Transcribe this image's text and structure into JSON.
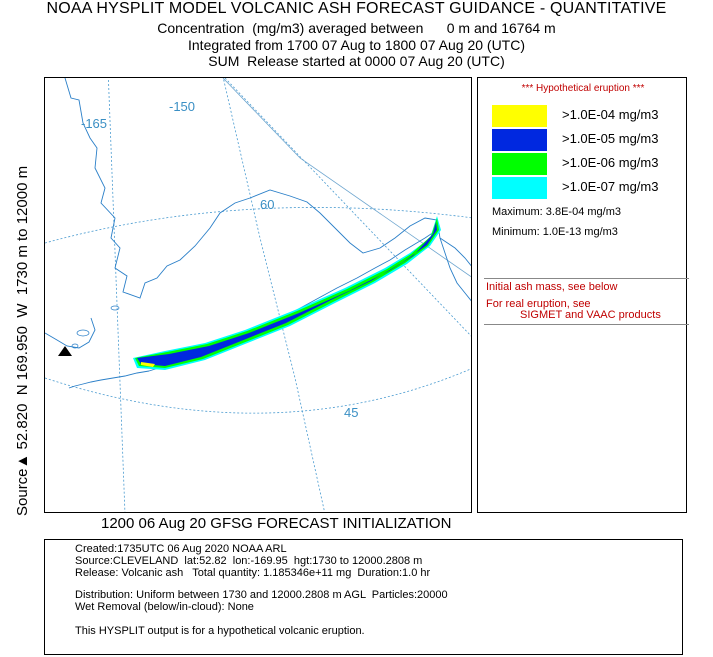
{
  "header": {
    "title": "NOAA HYSPLIT MODEL VOLCANIC ASH FORECAST GUIDANCE - QUANTITATIVE",
    "line1": "Concentration  (mg/m3) averaged between      0 m and 16764 m",
    "line2": "Integrated from 1700 07 Aug to 1800 07 Aug 20 (UTC)",
    "line3": "SUM  Release started at 0000 07 Aug 20 (UTC)"
  },
  "side_label": {
    "prefix": "Source",
    "text": " 52.820  N 169.950  W  1730 m to 12000 m"
  },
  "map": {
    "meridian_labels": [
      "-165",
      "-150"
    ],
    "parallel_labels": [
      "60",
      "45"
    ],
    "source_marker": "black-triangle-icon",
    "colors": {
      "coast": "#2a7fc8",
      "grid": "#4a9bd0",
      "yellow": "#ffff00",
      "blue": "#0028e0",
      "green": "#00ff00",
      "cyan": "#00ffff"
    }
  },
  "legend": {
    "hypothetical": "*** Hypothetical eruption ***",
    "items": [
      {
        "label": ">1.0E-04 mg/m3",
        "color": "#ffff00"
      },
      {
        "label": ">1.0E-05 mg/m3",
        "color": "#0028e0"
      },
      {
        "label": ">1.0E-06 mg/m3",
        "color": "#00ff00"
      },
      {
        "label": ">1.0E-07 mg/m3",
        "color": "#00ffff"
      }
    ],
    "maximum": "Maximum: 3.8E-04 mg/m3",
    "minimum": "Minimum: 1.0E-13 mg/m3",
    "note1": "Initial ash mass, see below",
    "note2": "For real eruption, see",
    "note3": "SIGMET and VAAC products"
  },
  "init_line": "1200 06 Aug 20 GFSG FORECAST INITIALIZATION",
  "info": {
    "created": "Created:1735UTC 06 Aug 2020 NOAA ARL",
    "source": "Source:CLEVELAND  lat:52.82  lon:-169.95  hgt:1730 to 12000.2808 m",
    "release": "Release: Volcanic ash   Total quantity: 1.185346e+11 mg  Duration:1.0 hr",
    "distribution": "Distribution: Uniform between 1730 and 12000.2808 m AGL  Particles:20000",
    "wet_removal": "Wet Removal (below/in-cloud): None",
    "disclaimer": "This HYSPLIT output is for a hypothetical volcanic eruption."
  }
}
